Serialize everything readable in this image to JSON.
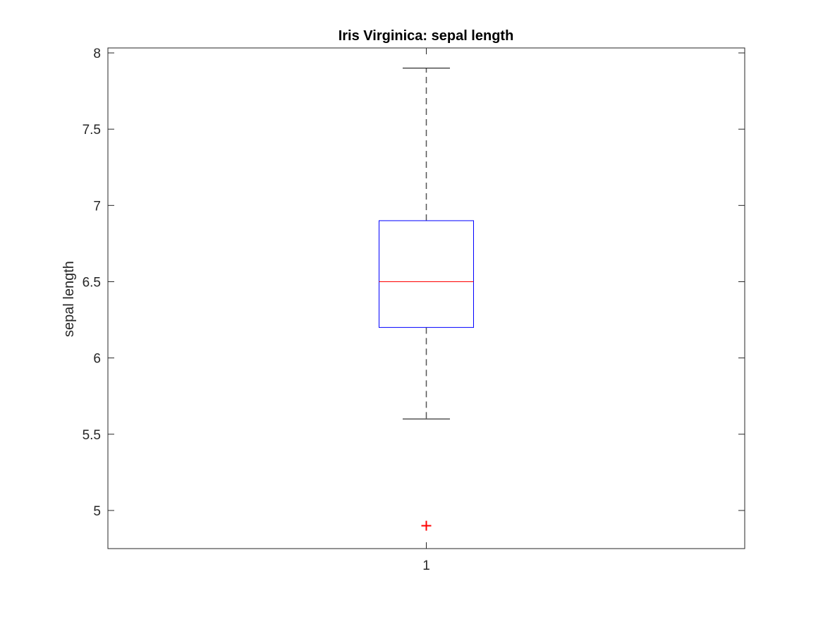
{
  "chart_data": {
    "type": "box",
    "title": "Iris Virginica: sepal length",
    "xlabel": "",
    "ylabel": "sepal length",
    "ylim": [
      4.75,
      8.0325
    ],
    "yticks": [
      5,
      5.5,
      6,
      6.5,
      7,
      7.5,
      8
    ],
    "ytick_labels": [
      "5",
      "5.5",
      "6",
      "6.5",
      "7",
      "7.5",
      "8"
    ],
    "categories": [
      "1"
    ],
    "box": {
      "whisker_low": 5.6,
      "q1": 6.2,
      "median": 6.5,
      "q3": 6.9,
      "whisker_high": 7.9,
      "outliers": [
        4.9
      ]
    },
    "colors": {
      "box": "#0000ff",
      "median": "#ff0000",
      "whisker": "#000000",
      "outlier": "#ff0000",
      "axes": "#262626"
    }
  }
}
